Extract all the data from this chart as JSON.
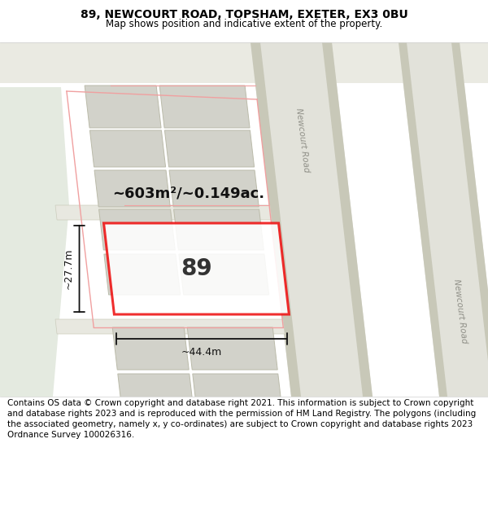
{
  "title_line1": "89, NEWCOURT ROAD, TOPSHAM, EXETER, EX3 0BU",
  "title_line2": "Map shows position and indicative extent of the property.",
  "footer_text": "Contains OS data © Crown copyright and database right 2021. This information is subject to Crown copyright and database rights 2023 and is reproduced with the permission of HM Land Registry. The polygons (including the associated geometry, namely x, y co-ordinates) are subject to Crown copyright and database rights 2023 Ordnance Survey 100026316.",
  "area_label": "~603m²/~0.149ac.",
  "number_label": "89",
  "width_label": "~44.4m",
  "height_label": "~27.7m",
  "road_label_top": "Newcourt Road",
  "road_label_bottom": "Newcourt Road",
  "map_bg": "#f0f0eb",
  "plot_outline_color": "#ee1111",
  "building_fill_color": "#d2d2ca",
  "building_edge_color": "#bbbbaa",
  "road_fill_color": "#e2e2da",
  "road_edge_color": "#c8c8b8",
  "green_area_color": "#e4eae0",
  "dim_line_color": "#111111",
  "figure_width": 6.0,
  "figure_height": 6.25,
  "title_fontsize": 10,
  "subtitle_fontsize": 8.5,
  "footer_fontsize": 7.5
}
